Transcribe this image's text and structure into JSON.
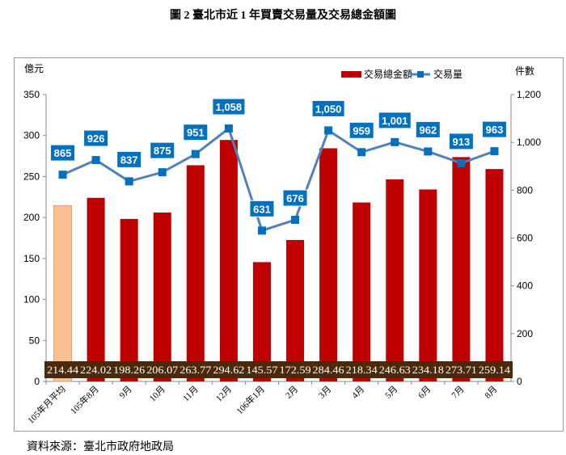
{
  "title": "圖 2 臺北市近 1 年買賣交易量及交易總金額圖",
  "source": "資料來源：臺北市政府地政局",
  "chart_data": {
    "type": "bar+line",
    "categories": [
      "105年月平均",
      "105年8月",
      "9月",
      "10月",
      "11月",
      "12月",
      "106年1月",
      "2月",
      "3月",
      "4月",
      "5月",
      "6月",
      "7月",
      "8月"
    ],
    "y_left_label": "億元",
    "y_right_label": "件數",
    "y_left_lim": [
      0,
      350
    ],
    "y_left_ticks": [
      "0",
      "50",
      "100",
      "150",
      "200",
      "250",
      "300",
      "350"
    ],
    "y_right_lim": [
      0,
      1200
    ],
    "y_right_ticks": [
      "0",
      "200",
      "400",
      "600",
      "800",
      "1,000",
      "1,200"
    ],
    "series": [
      {
        "name": "交易總金額",
        "type": "bar",
        "color": "#C00000",
        "highlight_first_color": "#FAC090",
        "values": [
          214.44,
          224.02,
          198.26,
          206.07,
          263.77,
          294.62,
          145.57,
          172.59,
          284.46,
          218.34,
          246.63,
          234.18,
          273.71,
          259.14
        ],
        "labels": [
          "214.44",
          "224.02",
          "198.26",
          "206.07",
          "263.77",
          "294.62",
          "145.57",
          "172.59",
          "284.46",
          "218.34",
          "246.63",
          "234.18",
          "273.71",
          "259.14"
        ]
      },
      {
        "name": "交易量",
        "type": "line",
        "axis": "right",
        "color": "#4F81BD",
        "marker_color": "#0070C0",
        "values": [
          865,
          926,
          837,
          875,
          951,
          1058,
          631,
          676,
          1050,
          959,
          1001,
          962,
          913,
          963
        ],
        "labels": [
          "865",
          "926",
          "837",
          "875",
          "951",
          "1,058",
          "631",
          "676",
          "1,050",
          "959",
          "1,001",
          "962",
          "913",
          "963"
        ]
      }
    ],
    "legend": "top-right",
    "grid": false
  }
}
